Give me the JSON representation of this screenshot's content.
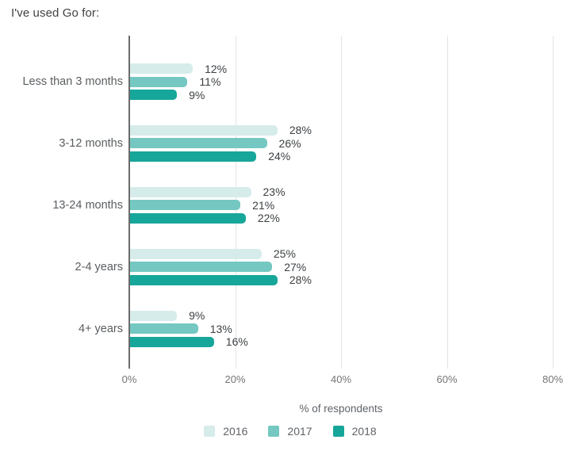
{
  "title": "I've used Go for:",
  "chart_data": {
    "type": "bar",
    "orientation": "horizontal",
    "title": "I've used Go for:",
    "categories": [
      "Less than 3 months",
      "3-12 months",
      "13-24 months",
      "2-4 years",
      "4+ years"
    ],
    "series": [
      {
        "name": "2016",
        "color": "#d6ecea",
        "values": [
          12,
          28,
          23,
          25,
          9
        ]
      },
      {
        "name": "2017",
        "color": "#74c8c1",
        "values": [
          11,
          26,
          21,
          27,
          13
        ]
      },
      {
        "name": "2018",
        "color": "#17a69a",
        "values": [
          9,
          24,
          22,
          28,
          16
        ]
      }
    ],
    "value_suffix": "%",
    "data_labels": true,
    "xlabel": "% of respondents",
    "x_ticks": [
      0,
      20,
      40,
      60,
      80
    ],
    "x_tick_labels": [
      "0%",
      "20%",
      "40%",
      "60%",
      "80%"
    ],
    "xlim": [
      0,
      80
    ],
    "grid": true,
    "legend_position": "bottom"
  },
  "colors": {
    "axis_line": "#6b6b6b",
    "gridline": "#e3e3e3",
    "title_text": "#424242",
    "category_text": "#5a5e61",
    "value_text": "#3c4043",
    "tick_text": "#757575"
  }
}
